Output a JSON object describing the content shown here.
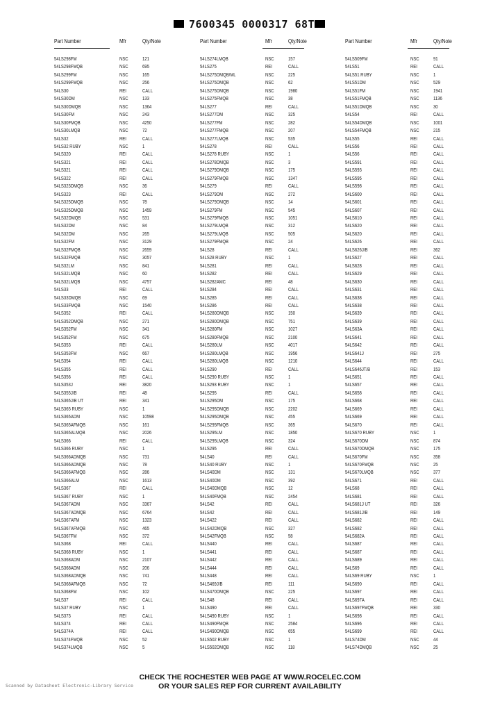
{
  "header_code": "7600345 0000317 68T",
  "columns": [
    "Part Number",
    "Mfr",
    "Qty/Note"
  ],
  "groups": [
    [
      [
        "54LS298FM",
        "NSC",
        "121"
      ],
      [
        "54LS298FMQB",
        "NSC",
        "695"
      ],
      [
        "54LS299FM",
        "NSC",
        "165"
      ],
      [
        "54LS299FMQB",
        "NSC",
        "256"
      ],
      [
        "54LS30",
        "REI",
        "CALL"
      ],
      [
        "54LS30DM",
        "NSC",
        "133"
      ],
      [
        "54LS30DMQB",
        "NSC",
        "1364"
      ],
      [
        "54LS30FM",
        "NSC",
        "243"
      ],
      [
        "54LS30FMQB",
        "NSC",
        "4250"
      ],
      [
        "54LS30LMQB",
        "NSC",
        "72"
      ],
      [
        "54LS32",
        "REI",
        "CALL"
      ],
      [
        "54LS32 RUBY",
        "NSC",
        "1"
      ],
      [
        "54LS320",
        "REI",
        "CALL"
      ],
      [
        "54LS321",
        "REI",
        "CALL"
      ],
      [
        "54LS321",
        "REI",
        "CALL"
      ],
      [
        "54LS322",
        "REI",
        "CALL"
      ],
      [
        "54LS323DMQB",
        "NSC",
        "36"
      ],
      [
        "54LS323",
        "REI",
        "CALL"
      ],
      [
        "54LS325DMQB",
        "NSC",
        "78"
      ],
      [
        "54LS325DMQB",
        "NSC",
        "1459"
      ],
      [
        "54LS32DMQB",
        "NSC",
        "531"
      ],
      [
        "54LS32DM",
        "NSC",
        "84"
      ],
      [
        "54LS32DM",
        "NSC",
        "265"
      ],
      [
        "54LS32FM",
        "NSC",
        "3129"
      ],
      [
        "54LS32FMQB",
        "NSC",
        "2659"
      ],
      [
        "54LS32FMQB",
        "NSC",
        "3057"
      ],
      [
        "54LS32LM",
        "NSC",
        "841"
      ],
      [
        "54LS32LMQB",
        "NSC",
        "60"
      ],
      [
        "54LS32LMQB",
        "NSC",
        "4757"
      ],
      [
        "54LS33",
        "REI",
        "CALL"
      ],
      [
        "54LS33DMQB",
        "NSC",
        "69"
      ],
      [
        "54LS33FMQB",
        "NSC",
        "1540"
      ],
      [
        "54LS352",
        "REI",
        "CALL"
      ],
      [
        "54LS352DMQB",
        "NSC",
        "271"
      ],
      [
        "54LS352FM",
        "NSC",
        "341"
      ],
      [
        "54LS352FM",
        "NSC",
        "675"
      ],
      [
        "54LS353",
        "REI",
        "CALL"
      ],
      [
        "54LS353FM",
        "NSC",
        "667"
      ],
      [
        "54LS354",
        "REI",
        "CALL"
      ],
      [
        "54LS355",
        "REI",
        "CALL"
      ],
      [
        "54LS356",
        "REI",
        "CALL"
      ],
      [
        "54LS353J",
        "REI",
        "3820"
      ],
      [
        "54LS355J/B",
        "REI",
        "48"
      ],
      [
        "54LS365J/B UT",
        "REI",
        "341"
      ],
      [
        "54LS365 RUBY",
        "NSC",
        "1"
      ],
      [
        "54LS365ADM",
        "NSC",
        "10598"
      ],
      [
        "54LS365AFMQB",
        "NSC",
        "161"
      ],
      [
        "54LS365ALMQB",
        "NSC",
        "2026"
      ],
      [
        "54LS366",
        "REI",
        "CALL"
      ],
      [
        "54LS366 RUBY",
        "NSC",
        "1"
      ],
      [
        "54LS366ADMQB",
        "NSC",
        "731"
      ],
      [
        "54LS366ADMQB",
        "NSC",
        "78"
      ],
      [
        "54LS366AFMQB",
        "NSC",
        "286"
      ],
      [
        "54LS366ALM",
        "NSC",
        "1613"
      ],
      [
        "54LS367",
        "REI",
        "CALL"
      ],
      [
        "54LS367 RUBY",
        "NSC",
        "1"
      ],
      [
        "54LS367ADM",
        "NSC",
        "3367"
      ],
      [
        "54LS367ADMQB",
        "NSC",
        "6764"
      ],
      [
        "54LS367AFM",
        "NSC",
        "1323"
      ],
      [
        "54LS367AFMQB",
        "NSC",
        "465"
      ],
      [
        "54LS367FM",
        "NSC",
        "372"
      ],
      [
        "54LS368",
        "REI",
        "CALL"
      ],
      [
        "54LS368 RUBY",
        "NSC",
        "1"
      ],
      [
        "54LS368ADM",
        "NSC",
        "2107"
      ],
      [
        "54LS368ADM",
        "NSC",
        "206"
      ],
      [
        "54LS368ADMQB",
        "NSC",
        "741"
      ],
      [
        "54LS368AFMQB",
        "NSC",
        "72"
      ],
      [
        "54LS368FM",
        "NSC",
        "102"
      ],
      [
        "54LS37",
        "REI",
        "CALL"
      ],
      [
        "54LS37 RUBY",
        "NSC",
        "1"
      ],
      [
        "54LS373",
        "REI",
        "CALL"
      ],
      [
        "54LS374",
        "REI",
        "CALL"
      ],
      [
        "54LS374A",
        "REI",
        "CALL"
      ],
      [
        "54LS374FMQB",
        "NSC",
        "52"
      ],
      [
        "54LS374LMQB",
        "NSC",
        "5"
      ]
    ],
    [
      [
        "54LS274LMQB",
        "NSC",
        "157"
      ],
      [
        "54LS275",
        "REI",
        "CALL"
      ],
      [
        "54LS275DMQB/ML",
        "NSC",
        "225"
      ],
      [
        "54LS275DMQB",
        "NSC",
        "62"
      ],
      [
        "54LS275DMQB",
        "NSC",
        "1980"
      ],
      [
        "54LS275FMQB",
        "NSC",
        "38"
      ],
      [
        "54LS277",
        "REI",
        "CALL"
      ],
      [
        "54LS277DM",
        "NSC",
        "325"
      ],
      [
        "54LS277FM",
        "NSC",
        "282"
      ],
      [
        "54LS277FMQB",
        "NSC",
        "207"
      ],
      [
        "54LS277LMQB",
        "NSC",
        "535"
      ],
      [
        "54LS278",
        "REI",
        "CALL"
      ],
      [
        "54LS278 RUBY",
        "NSC",
        "1"
      ],
      [
        "54LS278DMQB",
        "NSC",
        "3"
      ],
      [
        "54LS279DMQB",
        "NSC",
        "175"
      ],
      [
        "54LS279FMQB",
        "NSC",
        "1347"
      ],
      [
        "54LS279",
        "REI",
        "CALL"
      ],
      [
        "54LS279DM",
        "NSC",
        "272"
      ],
      [
        "54LS279DMQB",
        "NSC",
        "14"
      ],
      [
        "54LS279FM",
        "NSC",
        "545"
      ],
      [
        "54LS279FMQB",
        "NSC",
        "1051"
      ],
      [
        "54LS279LMQB",
        "NSC",
        "312"
      ],
      [
        "54LS279LMQB",
        "NSC",
        "505"
      ],
      [
        "54LS279FMQB",
        "NSC",
        "24"
      ],
      [
        "54LS28",
        "REI",
        "CALL"
      ],
      [
        "54LS28 RUBY",
        "NSC",
        "1"
      ],
      [
        "54LS281",
        "REI",
        "CALL"
      ],
      [
        "54LS282",
        "REI",
        "CALL"
      ],
      [
        "54LS282AMC",
        "REI",
        "48"
      ],
      [
        "54LS284",
        "REI",
        "CALL"
      ],
      [
        "54LS285",
        "REI",
        "CALL"
      ],
      [
        "54LS286",
        "REI",
        "CALL"
      ],
      [
        "54LS280DMQB",
        "NSC",
        "150"
      ],
      [
        "54LS280DMQB",
        "NSC",
        "751"
      ],
      [
        "54LS280FM",
        "NSC",
        "1027"
      ],
      [
        "54LS280FMQB",
        "NSC",
        "2100"
      ],
      [
        "54LS280LM",
        "NSC",
        "4017"
      ],
      [
        "54LS280LMQB",
        "NSC",
        "1956"
      ],
      [
        "54LS280LMQB",
        "NSC",
        "1210"
      ],
      [
        "54LS290",
        "REI",
        "CALL"
      ],
      [
        "54LS290 RUBY",
        "NSC",
        "1"
      ],
      [
        "54LS293 RUBY",
        "NSC",
        "1"
      ],
      [
        "54LS295",
        "REI",
        "CALL"
      ],
      [
        "54LS295DM",
        "NSC",
        "175"
      ],
      [
        "54LS295DMQB",
        "NSC",
        "2202"
      ],
      [
        "54LS295DMQB",
        "NSC",
        "455"
      ],
      [
        "54LS295FMQB",
        "NSC",
        "365"
      ],
      [
        "54LS295LM",
        "NSC",
        "1850"
      ],
      [
        "54LS295LMQB",
        "NSC",
        "324"
      ],
      [
        "54LS295",
        "REI",
        "CALL"
      ],
      [
        "54LS40",
        "REI",
        "CALL"
      ],
      [
        "54LS40 RUBY",
        "NSC",
        "1"
      ],
      [
        "54LS40DM",
        "NSC",
        "131"
      ],
      [
        "54LS40DM",
        "NSC",
        "392"
      ],
      [
        "54LS40DMQB",
        "NSC",
        "12"
      ],
      [
        "54LS40FMQB",
        "NSC",
        "2454"
      ],
      [
        "54LS42",
        "REI",
        "CALL"
      ],
      [
        "54LS42",
        "REI",
        "CALL"
      ],
      [
        "54LS422",
        "REI",
        "CALL"
      ],
      [
        "54LS42DMQB",
        "NSC",
        "327"
      ],
      [
        "54LS42FMQB",
        "NSC",
        "58"
      ],
      [
        "54LS440",
        "REI",
        "CALL"
      ],
      [
        "54LS441",
        "REI",
        "CALL"
      ],
      [
        "54LS442",
        "REI",
        "CALL"
      ],
      [
        "54LS444",
        "REI",
        "CALL"
      ],
      [
        "54LS448",
        "REI",
        "CALL"
      ],
      [
        "54LS469J/B",
        "REI",
        "111"
      ],
      [
        "54LS470DMQB",
        "NSC",
        "225"
      ],
      [
        "54LS48",
        "REI",
        "CALL"
      ],
      [
        "54LS490",
        "REI",
        "CALL"
      ],
      [
        "54LS490 RUBY",
        "NSC",
        "1"
      ],
      [
        "54LS490FMQB",
        "NSC",
        "2584"
      ],
      [
        "54LS490DMQB",
        "NSC",
        "655"
      ],
      [
        "54LS502 RUBY",
        "NSC",
        "1"
      ],
      [
        "54LS502DMQB",
        "NSC",
        "118"
      ]
    ],
    [
      [
        "54LS509FM",
        "NSC",
        "91"
      ],
      [
        "54LS51",
        "REI",
        "CALL"
      ],
      [
        "54LS51 RUBY",
        "NSC",
        "1"
      ],
      [
        "54LS51DM",
        "NSC",
        "529"
      ],
      [
        "54LS51FM",
        "NSC",
        "1941"
      ],
      [
        "54LS51FMQB",
        "NSC",
        "1136"
      ],
      [
        "54LS51DMQB",
        "NSC",
        "30"
      ],
      [
        "54LS54",
        "REI",
        "CALL"
      ],
      [
        "54LS54DMQB",
        "NSC",
        "1001"
      ],
      [
        "54LS54FMQB",
        "NSC",
        "215"
      ],
      [
        "54LS55",
        "REI",
        "CALL"
      ],
      [
        "54LS56",
        "REI",
        "CALL"
      ],
      [
        "54LS56",
        "REI",
        "CALL"
      ],
      [
        "54LS591",
        "REI",
        "CALL"
      ],
      [
        "54LS593",
        "REI",
        "CALL"
      ],
      [
        "54LS595",
        "REI",
        "CALL"
      ],
      [
        "54LS598",
        "REI",
        "CALL"
      ],
      [
        "54LS600",
        "REI",
        "CALL"
      ],
      [
        "54LS601",
        "REI",
        "CALL"
      ],
      [
        "54LS607",
        "REI",
        "CALL"
      ],
      [
        "54LS610",
        "REI",
        "CALL"
      ],
      [
        "54LS620",
        "REI",
        "CALL"
      ],
      [
        "54LS620",
        "REI",
        "CALL"
      ],
      [
        "54LS626",
        "REI",
        "CALL"
      ],
      [
        "54LS626J/B",
        "REI",
        "362"
      ],
      [
        "54LS627",
        "REI",
        "CALL"
      ],
      [
        "54LS628",
        "REI",
        "CALL"
      ],
      [
        "54LS629",
        "REI",
        "CALL"
      ],
      [
        "54LS630",
        "REI",
        "CALL"
      ],
      [
        "54LS631",
        "REI",
        "CALL"
      ],
      [
        "54LS638",
        "REI",
        "CALL"
      ],
      [
        "54LS638",
        "REI",
        "CALL"
      ],
      [
        "54LS639",
        "REI",
        "CALL"
      ],
      [
        "54LS639",
        "REI",
        "CALL"
      ],
      [
        "54LS63A",
        "REI",
        "CALL"
      ],
      [
        "54LS641",
        "REI",
        "CALL"
      ],
      [
        "54LS642",
        "REI",
        "CALL"
      ],
      [
        "54LS641J",
        "REI",
        "275"
      ],
      [
        "54LS644",
        "REI",
        "CALL"
      ],
      [
        "54LS646JT/B",
        "REI",
        "153"
      ],
      [
        "54LS651",
        "REI",
        "CALL"
      ],
      [
        "54LS657",
        "REI",
        "CALL"
      ],
      [
        "54LS658",
        "REI",
        "CALL"
      ],
      [
        "54LS668",
        "REI",
        "CALL"
      ],
      [
        "54LS669",
        "REI",
        "CALL"
      ],
      [
        "54LS669",
        "REI",
        "CALL"
      ],
      [
        "54LS670",
        "REI",
        "CALL"
      ],
      [
        "54LS670 RUBY",
        "NSC",
        "1"
      ],
      [
        "54LS670DM",
        "NSC",
        "874"
      ],
      [
        "54LS670DMQB",
        "NSC",
        "175"
      ],
      [
        "54LS670FM",
        "NSC",
        "358"
      ],
      [
        "54LS670FMQB",
        "NSC",
        "25"
      ],
      [
        "54LS670LMQB",
        "NSC",
        "377"
      ],
      [
        "54LS671",
        "REI",
        "CALL"
      ],
      [
        "54LS68",
        "REI",
        "CALL"
      ],
      [
        "54LS681",
        "REI",
        "CALL"
      ],
      [
        "54LS681J UT",
        "REI",
        "326"
      ],
      [
        "54LS681J/B",
        "REI",
        "149"
      ],
      [
        "54LS682",
        "REI",
        "CALL"
      ],
      [
        "54LS682",
        "REI",
        "CALL"
      ],
      [
        "54LS682A",
        "REI",
        "CALL"
      ],
      [
        "54LS687",
        "REI",
        "CALL"
      ],
      [
        "54LS687",
        "REI",
        "CALL"
      ],
      [
        "54LS689",
        "REI",
        "CALL"
      ],
      [
        "54LS69",
        "REI",
        "CALL"
      ],
      [
        "54LS69 RUBY",
        "NSC",
        "1"
      ],
      [
        "54LS690",
        "REI",
        "CALL"
      ],
      [
        "54LS697",
        "REI",
        "CALL"
      ],
      [
        "54LS697A",
        "REI",
        "CALL"
      ],
      [
        "54LS697FMQB",
        "REI",
        "330"
      ],
      [
        "54LS698",
        "REI",
        "CALL"
      ],
      [
        "54LS696",
        "REI",
        "CALL"
      ],
      [
        "54LS699",
        "REI",
        "CALL"
      ],
      [
        "54LS74DM",
        "NSC",
        "44"
      ],
      [
        "54LS74DMQB",
        "NSC",
        "25"
      ]
    ]
  ],
  "footer": {
    "line1": "CHECK THE ROCHESTER WEB PAGE AT WWW.ROCELEC.COM",
    "line2": "OR YOUR SALES REP FOR CURRENT AVAILABILITY"
  },
  "scan_note": "Scanned by Datasheet Electronic-Library Service"
}
